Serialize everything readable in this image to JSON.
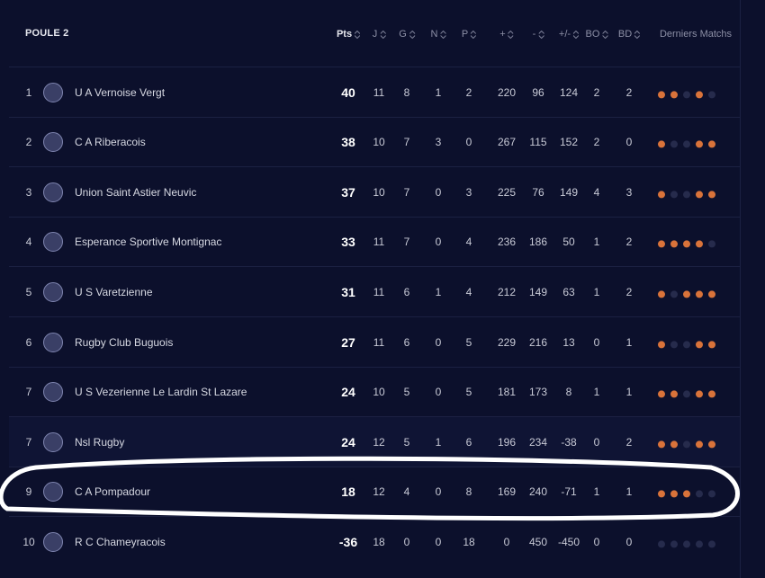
{
  "header": {
    "title": "POULE 2"
  },
  "table": {
    "columns": [
      "Pts",
      "J",
      "G",
      "N",
      "P",
      "+",
      "-",
      "+/-",
      "BO",
      "BD",
      "Derniers Matchs"
    ],
    "win_color": "#d9733a",
    "loss_color": "#262b4c",
    "rows": [
      {
        "rank": 1,
        "team": "U A Vernoise Vergt",
        "values": [
          40,
          11,
          8,
          1,
          2,
          220,
          96,
          124,
          2,
          2
        ],
        "form": [
          true,
          true,
          false,
          true,
          false
        ]
      },
      {
        "rank": 2,
        "team": "C A Riberacois",
        "values": [
          38,
          10,
          7,
          3,
          0,
          267,
          115,
          152,
          2,
          0
        ],
        "form": [
          true,
          false,
          false,
          true,
          true
        ]
      },
      {
        "rank": 3,
        "team": "Union Saint Astier Neuvic",
        "values": [
          37,
          10,
          7,
          0,
          3,
          225,
          76,
          149,
          4,
          3
        ],
        "form": [
          true,
          false,
          false,
          true,
          true
        ]
      },
      {
        "rank": 4,
        "team": "Esperance Sportive Montignac",
        "values": [
          33,
          11,
          7,
          0,
          4,
          236,
          186,
          50,
          1,
          2
        ],
        "form": [
          true,
          true,
          true,
          true,
          false
        ]
      },
      {
        "rank": 5,
        "team": "U S Varetzienne",
        "values": [
          31,
          11,
          6,
          1,
          4,
          212,
          149,
          63,
          1,
          2
        ],
        "form": [
          true,
          false,
          true,
          true,
          true
        ]
      },
      {
        "rank": 6,
        "team": "Rugby Club Buguois",
        "values": [
          27,
          11,
          6,
          0,
          5,
          229,
          216,
          13,
          0,
          1
        ],
        "form": [
          true,
          false,
          false,
          true,
          true
        ]
      },
      {
        "rank": 7,
        "team": "U S Vezerienne Le Lardin St Lazare",
        "values": [
          24,
          10,
          5,
          0,
          5,
          181,
          173,
          8,
          1,
          1
        ],
        "form": [
          true,
          true,
          false,
          true,
          true
        ]
      },
      {
        "rank": 7,
        "team": "Nsl Rugby",
        "values": [
          24,
          12,
          5,
          1,
          6,
          196,
          234,
          -38,
          0,
          2
        ],
        "form": [
          true,
          true,
          false,
          true,
          true
        ]
      },
      {
        "rank": 9,
        "team": "C A Pompadour",
        "values": [
          18,
          12,
          4,
          0,
          8,
          169,
          240,
          -71,
          1,
          1
        ],
        "form": [
          true,
          true,
          true,
          false,
          false
        ]
      },
      {
        "rank": 10,
        "team": "R C Chameyracois",
        "values": [
          -36,
          18,
          0,
          0,
          18,
          0,
          450,
          -450,
          0,
          0
        ],
        "form": [
          false,
          false,
          false,
          false,
          false
        ]
      }
    ]
  }
}
